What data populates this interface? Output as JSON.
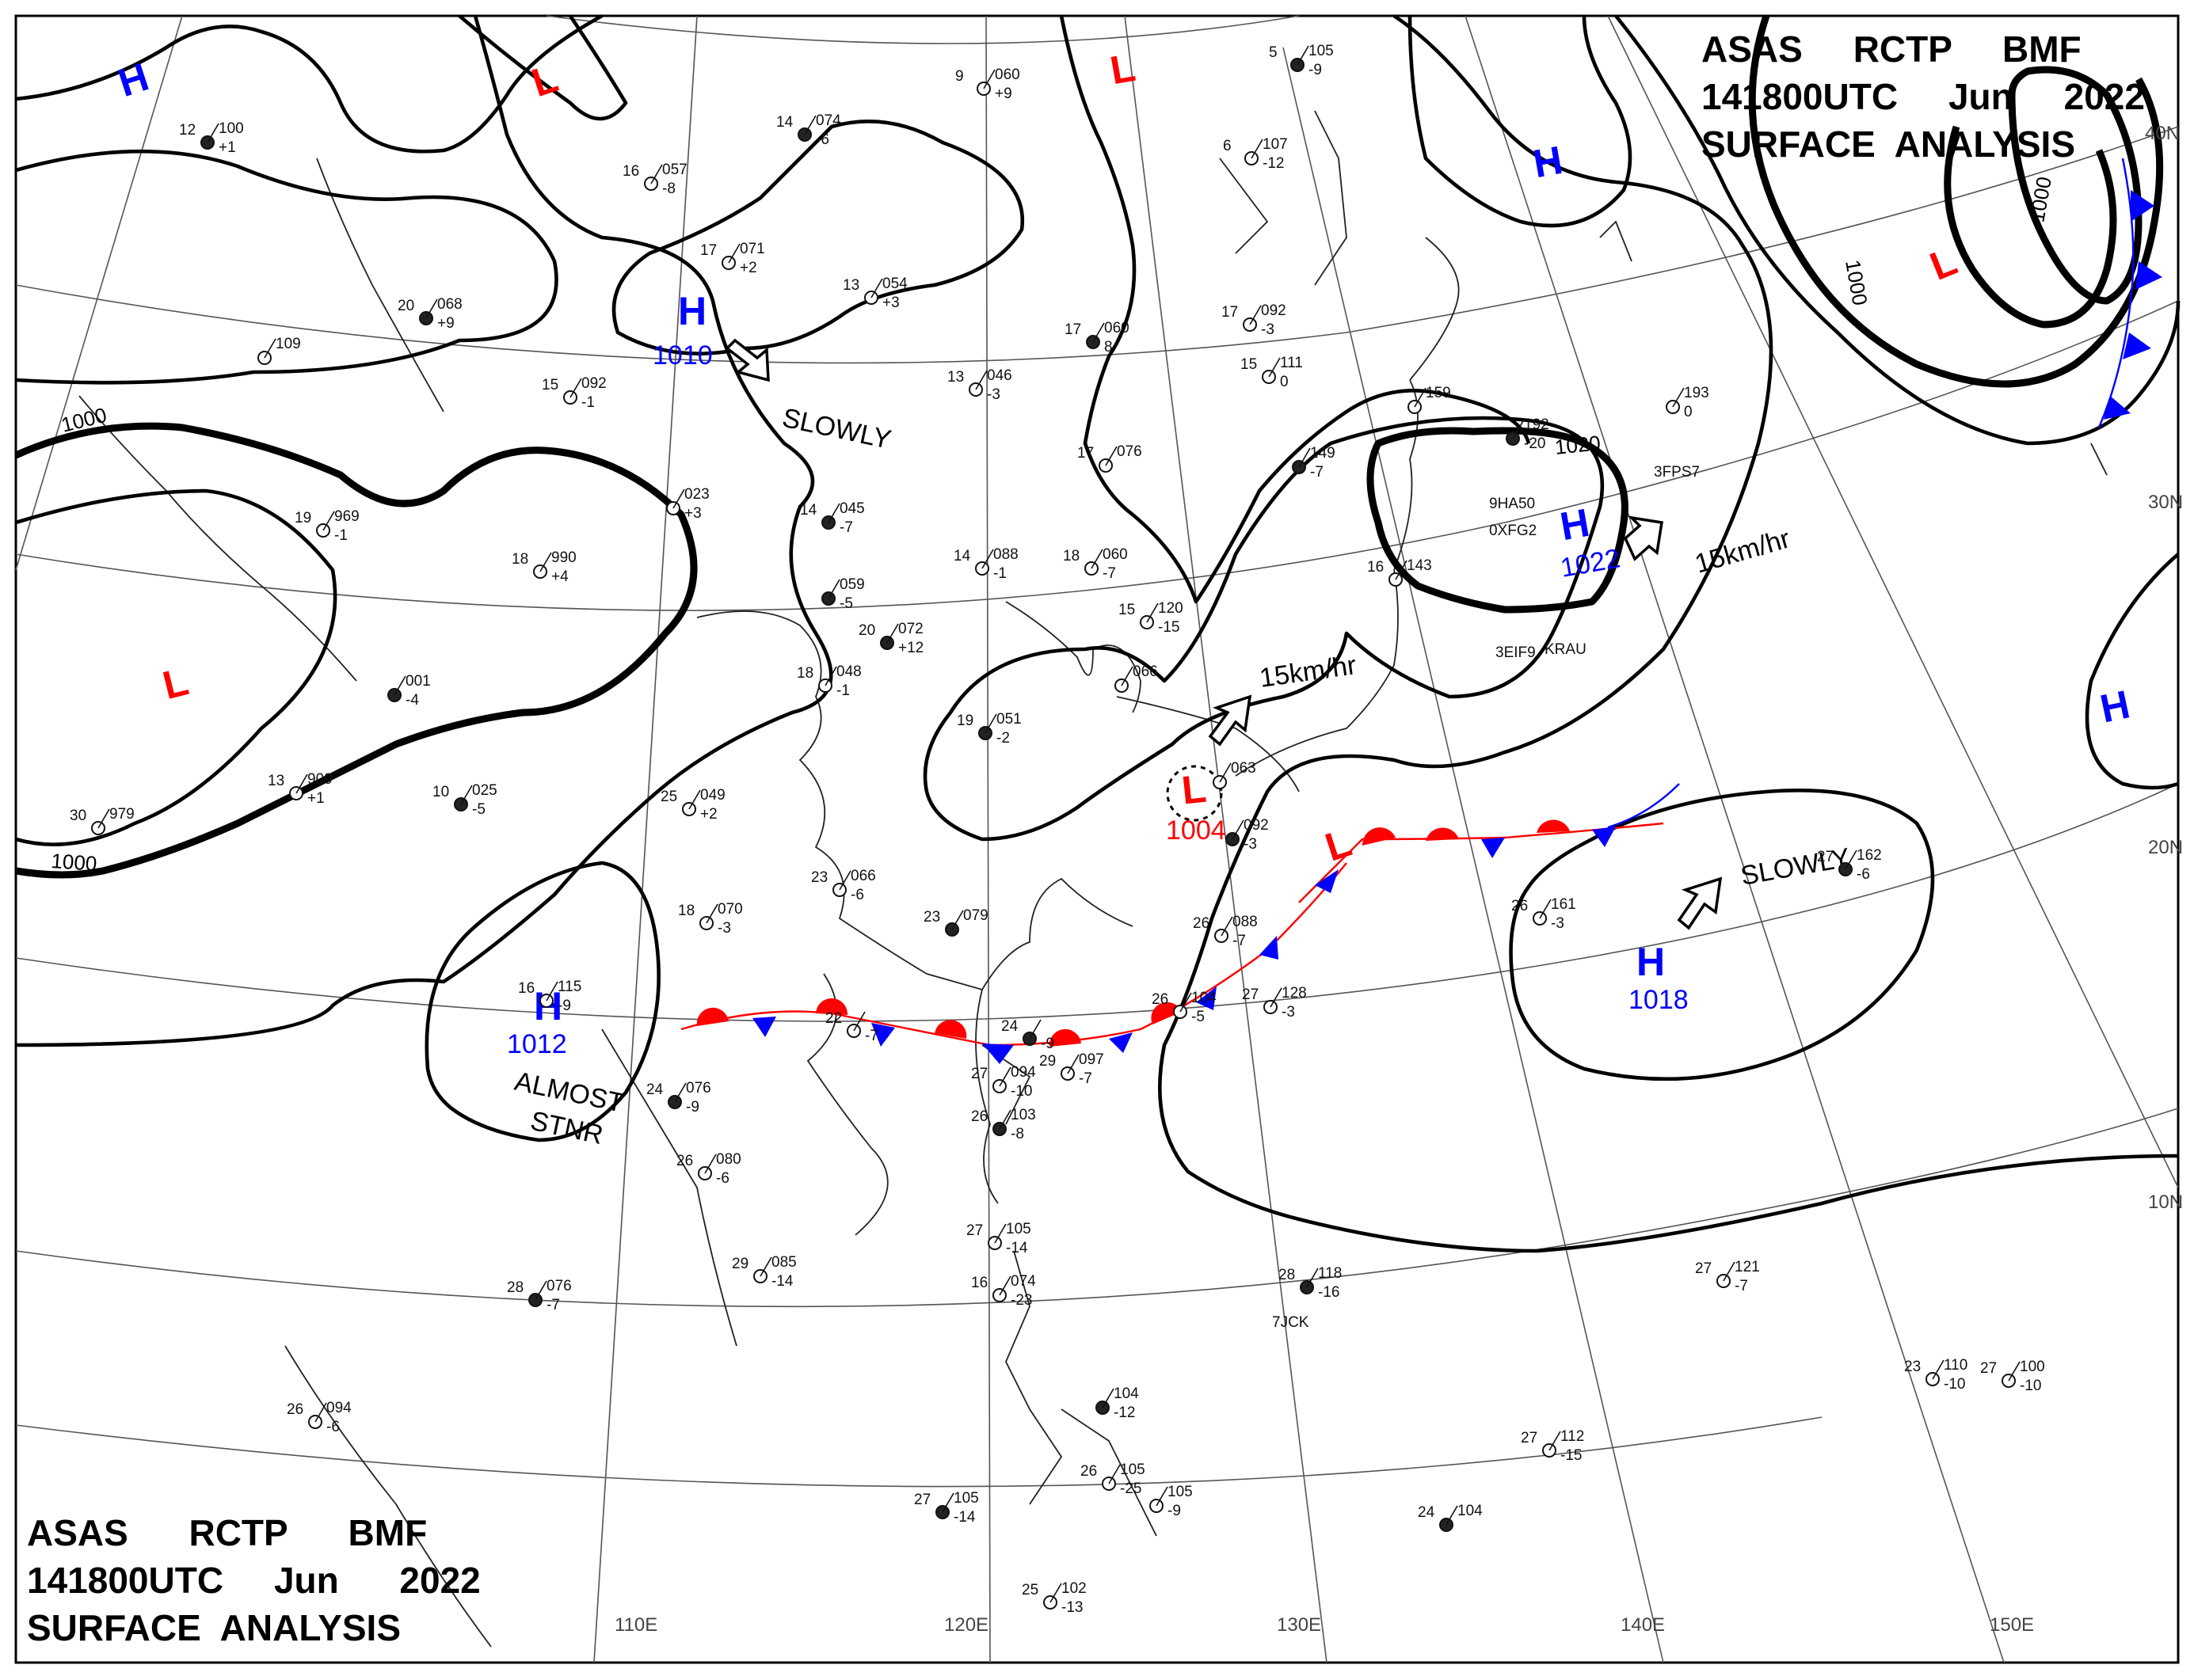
{
  "header_top_right": {
    "line1": "ASAS     RCTP     BMF",
    "line2": "141800UTC     Jun     2022",
    "line3": "SURFACE  ANALYSIS"
  },
  "header_bottom_left": {
    "line1": "ASAS      RCTP      BMF",
    "line2": "141800UTC     Jun      2022",
    "line3": "SURFACE  ANALYSIS"
  },
  "longitude_labels": [
    "110E",
    "120E",
    "130E",
    "140E",
    "150E"
  ],
  "latitude_labels": [
    "40N",
    "30N",
    "20N",
    "10N"
  ],
  "isobar_labels": [
    "1000",
    "1000",
    "1000",
    "1000",
    "1020"
  ],
  "pressure_centers": [
    {
      "type": "H",
      "value": "",
      "color": "#0000ff"
    },
    {
      "type": "L",
      "value": "",
      "color": "#ff0000"
    },
    {
      "type": "L",
      "value": "",
      "color": "#ff0000"
    },
    {
      "type": "H",
      "value": "1010",
      "color": "#0000ff"
    },
    {
      "type": "H",
      "value": "",
      "color": "#0000ff"
    },
    {
      "type": "L",
      "value": "",
      "color": "#ff0000"
    },
    {
      "type": "L",
      "value": "",
      "color": "#ff0000"
    },
    {
      "type": "H",
      "value": "1022",
      "color": "#0000ff"
    },
    {
      "type": "L",
      "value": "1004",
      "color": "#ff0000"
    },
    {
      "type": "L",
      "value": "",
      "color": "#ff0000"
    },
    {
      "type": "H",
      "value": "1012",
      "color": "#0000ff"
    },
    {
      "type": "H",
      "value": "1018",
      "color": "#0000ff"
    },
    {
      "type": "H",
      "value": "",
      "color": "#0000ff"
    }
  ],
  "movement_notes": {
    "slowly_1": "SLOWLY",
    "speed_1": "15km/hr",
    "speed_2": "15km/hr",
    "slowly_2": "SLOWLY",
    "almost": "ALMOST",
    "stnr": "STNR"
  },
  "station_plots": [
    {
      "t": "12",
      "p": "100",
      "d": "+1"
    },
    {
      "t": "16",
      "p": "057",
      "d": "-8"
    },
    {
      "t": "9",
      "p": "060",
      "d": "+9"
    },
    {
      "t": "14",
      "p": "074",
      "d": "-6"
    },
    {
      "t": "17",
      "p": "071",
      "d": "+2"
    },
    {
      "t": "13",
      "p": "054",
      "d": "+3"
    },
    {
      "t": "20",
      "p": "068",
      "d": "+9"
    },
    {
      "t": "",
      "p": "109",
      "d": ""
    },
    {
      "t": "15",
      "p": "092",
      "d": "-1"
    },
    {
      "t": "17",
      "p": "060",
      "d": "8"
    },
    {
      "t": "13",
      "p": "046",
      "d": "-3"
    },
    {
      "t": "6",
      "p": "107",
      "d": "-12"
    },
    {
      "t": "5",
      "p": "105",
      "d": "-9"
    },
    {
      "t": "17",
      "p": "092",
      "d": "-3"
    },
    {
      "t": "15",
      "p": "111",
      "d": "0"
    },
    {
      "t": "",
      "p": "149",
      "d": "-7"
    },
    {
      "t": "",
      "p": "159",
      "d": ""
    },
    {
      "t": "",
      "p": "193",
      "d": "0"
    },
    {
      "t": "",
      "p": "192",
      "d": "-20"
    },
    {
      "t": "19",
      "p": "969",
      "d": "-1"
    },
    {
      "t": "",
      "p": "023",
      "d": "+3"
    },
    {
      "t": "14",
      "p": "045",
      "d": "-7"
    },
    {
      "t": "17",
      "p": "076",
      "d": ""
    },
    {
      "t": "18",
      "p": "990",
      "d": "+4"
    },
    {
      "t": "",
      "p": "059",
      "d": "-5"
    },
    {
      "t": "14",
      "p": "088",
      "d": "-1"
    },
    {
      "t": "18",
      "p": "060",
      "d": "-7"
    },
    {
      "t": "20",
      "p": "072",
      "d": "+12"
    },
    {
      "t": "15",
      "p": "120",
      "d": "-15"
    },
    {
      "t": "16",
      "p": "143",
      "d": ""
    },
    {
      "t": "",
      "p": "001",
      "d": "-4"
    },
    {
      "t": "18",
      "p": "048",
      "d": "-1"
    },
    {
      "t": "",
      "p": "066",
      "d": ""
    },
    {
      "t": "19",
      "p": "051",
      "d": "-2"
    },
    {
      "t": "",
      "p": "063",
      "d": ""
    },
    {
      "t": "13",
      "p": "909",
      "d": "+1"
    },
    {
      "t": "10",
      "p": "025",
      "d": "-5"
    },
    {
      "t": "25",
      "p": "049",
      "d": "+2"
    },
    {
      "t": "30",
      "p": "979",
      "d": ""
    },
    {
      "t": "",
      "p": "092",
      "d": "-3"
    },
    {
      "t": "23",
      "p": "066",
      "d": "-6"
    },
    {
      "t": "18",
      "p": "070",
      "d": "-3"
    },
    {
      "t": "23",
      "p": "079",
      "d": ""
    },
    {
      "t": "26",
      "p": "088",
      "d": "-7"
    },
    {
      "t": "26",
      "p": "161",
      "d": "-3"
    },
    {
      "t": "27",
      "p": "162",
      "d": "-6"
    },
    {
      "t": "16",
      "p": "115",
      "d": "-9"
    },
    {
      "t": "22",
      "p": "",
      "d": "-7"
    },
    {
      "t": "24",
      "p": "",
      "d": "-9"
    },
    {
      "t": "26",
      "p": "104",
      "d": "-5"
    },
    {
      "t": "27",
      "p": "128",
      "d": "-3"
    },
    {
      "t": "24",
      "p": "076",
      "d": "-9"
    },
    {
      "t": "29",
      "p": "097",
      "d": "-7"
    },
    {
      "t": "27",
      "p": "094",
      "d": "-10"
    },
    {
      "t": "26",
      "p": "103",
      "d": "-8"
    },
    {
      "t": "26",
      "p": "080",
      "d": "-6"
    },
    {
      "t": "29",
      "p": "085",
      "d": "-14"
    },
    {
      "t": "28",
      "p": "076",
      "d": "-7"
    },
    {
      "t": "27",
      "p": "105",
      "d": "-14"
    },
    {
      "t": "16",
      "p": "074",
      "d": "-23"
    },
    {
      "t": "28",
      "p": "118",
      "d": "-16"
    },
    {
      "t": "27",
      "p": "121",
      "d": "-7"
    },
    {
      "t": "26",
      "p": "094",
      "d": "-6"
    },
    {
      "t": "",
      "p": "104",
      "d": "-12"
    },
    {
      "t": "27",
      "p": "112",
      "d": "-15"
    },
    {
      "t": "27",
      "p": "100",
      "d": "-10"
    },
    {
      "t": "27",
      "p": "105",
      "d": "-14"
    },
    {
      "t": "26",
      "p": "105",
      "d": "-25"
    },
    {
      "t": "",
      "p": "105",
      "d": "-9"
    },
    {
      "t": "24",
      "p": "104",
      "d": ""
    },
    {
      "t": "25",
      "p": "102",
      "d": "-13"
    },
    {
      "t": "23",
      "p": "110",
      "d": "-10"
    }
  ],
  "ship_callsigns": [
    "3EIF9",
    "KRAU",
    "3FPS7",
    "9HA50",
    "0XFG2",
    "7JCK"
  ]
}
